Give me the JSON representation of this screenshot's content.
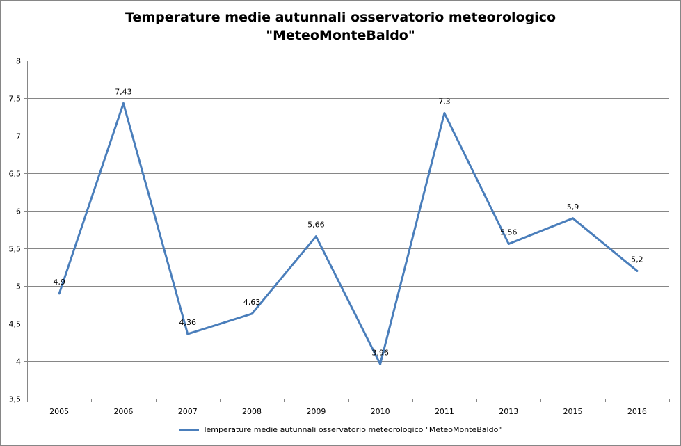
{
  "chart_data": {
    "type": "line",
    "title_line1": "Temperature medie autunnali osservatorio meteorologico",
    "title_line2": "\"MeteoMonteBaldo\"",
    "categories": [
      "2005",
      "2006",
      "2007",
      "2008",
      "2009",
      "2010",
      "2011",
      "2013",
      "2015",
      "2016"
    ],
    "series": [
      {
        "name": "Temperature medie autunnali  osservatorio meteorologico \"MeteoMonteBaldo\"",
        "values": [
          4.9,
          7.43,
          4.36,
          4.63,
          5.66,
          3.96,
          7.3,
          5.56,
          5.9,
          5.2
        ],
        "labels": [
          "4,9",
          "7,43",
          "4,36",
          "4,63",
          "5,66",
          "3,96",
          "7,3",
          "5,56",
          "5,9",
          "5,2"
        ]
      }
    ],
    "ylim": [
      3.5,
      8
    ],
    "yticks": [
      3.5,
      4,
      4.5,
      5,
      5.5,
      6,
      6.5,
      7,
      7.5,
      8
    ],
    "ytick_labels": [
      "3,5",
      "4",
      "4,5",
      "5",
      "5,5",
      "6",
      "6,5",
      "7",
      "7,5",
      "8"
    ],
    "grid": true,
    "legend": "bottom",
    "line_color": "#4a7ebb",
    "grid_color": "#868686"
  }
}
